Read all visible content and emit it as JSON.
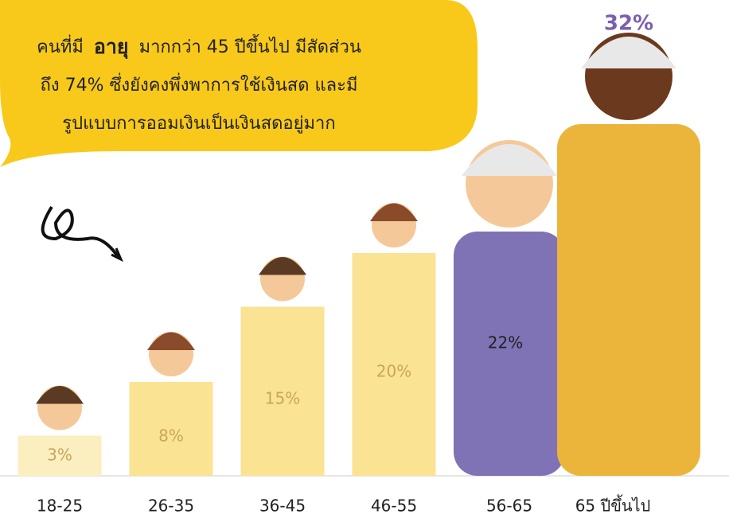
{
  "chart_data": {
    "type": "bar",
    "annotation": {
      "line1": [
        "คนที่มี",
        "อายุ",
        "มากกว่า 45 ปีขึ้นไป มีสัดส่วน"
      ],
      "line2": "ถึง 74% ซึ่งยังคงพึ่งพาการใช้เงินสด และมี",
      "line3": "รูปแบบการออมเงินเป็นเงินสดอยู่มาก"
    },
    "categories": [
      "18-25",
      "26-35",
      "36-45",
      "46-55",
      "56-65",
      "65 ปีขึ้นไป"
    ],
    "values": [
      3,
      8,
      15,
      20,
      22,
      32
    ],
    "value_labels": [
      "3%",
      "8%",
      "15%",
      "20%",
      "22%",
      "32%"
    ],
    "colors": [
      "#fbefc0",
      "#fbe394",
      "#fbe394",
      "#fbe394",
      "#7f73b6",
      "#eab53a"
    ]
  }
}
